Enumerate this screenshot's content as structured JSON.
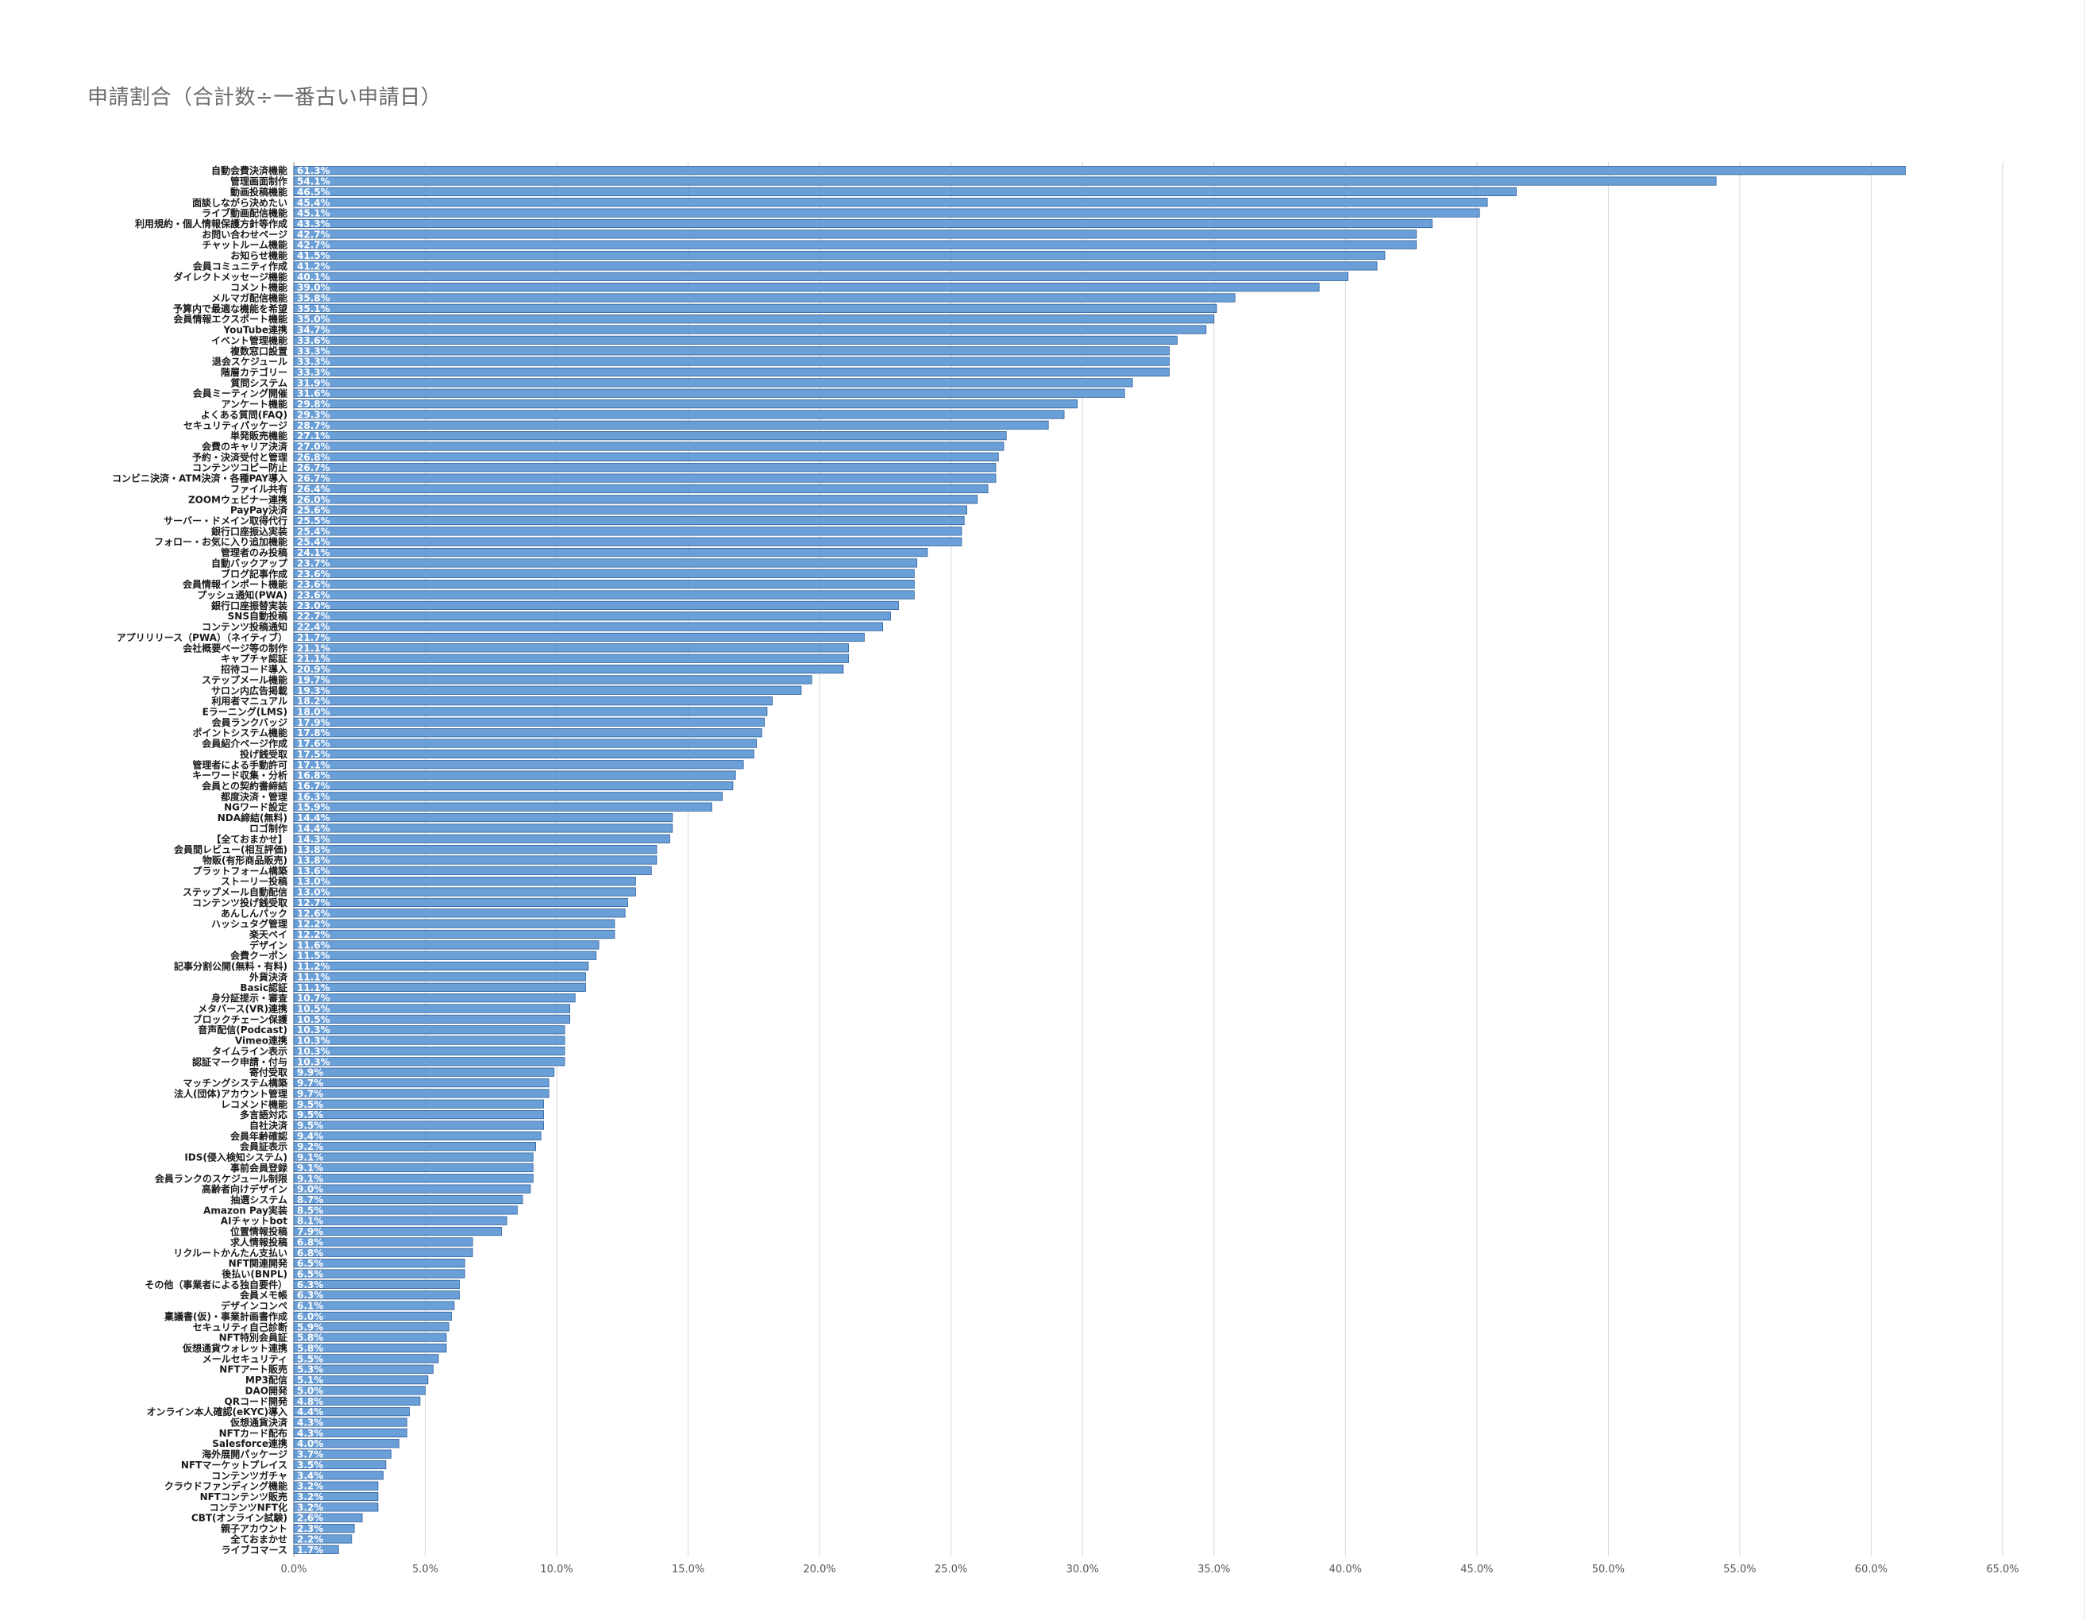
{
  "chart_data": {
    "type": "bar",
    "orientation": "horizontal",
    "title": "申請割合（合計数÷一番古い申請日）",
    "xlabel": "",
    "ylabel": "",
    "xlim": [
      0,
      65
    ],
    "x_ticks": [
      "0.0%",
      "5.0%",
      "10.0%",
      "15.0%",
      "20.0%",
      "25.0%",
      "30.0%",
      "35.0%",
      "40.0%",
      "45.0%",
      "50.0%",
      "55.0%",
      "60.0%",
      "65.0%"
    ],
    "grid": true,
    "legend": "none",
    "bar_color": "#6a9fd8",
    "bar_edge_color": "#2f5f9a",
    "categories": [
      "自動会費決済機能",
      "管理画面制作",
      "動画投稿機能",
      "面談しながら決めたい",
      "ライブ動画配信機能",
      "利用規約・個人情報保護方針等作成",
      "お問い合わせページ",
      "チャットルーム機能",
      "お知らせ機能",
      "会員コミュニティ作成",
      "ダイレクトメッセージ機能",
      "コメント機能",
      "メルマガ配信機能",
      "予算内で最適な機能を希望",
      "会員情報エクスポート機能",
      "YouTube連携",
      "イベント管理機能",
      "複数窓口設置",
      "退会スケジュール",
      "階層カテゴリー",
      "質問システム",
      "会員ミーティング開催",
      "アンケート機能",
      "よくある質問(FAQ)",
      "セキュリティパッケージ",
      "単発販売機能",
      "会費のキャリア決済",
      "予約・決済受付と管理",
      "コンテンツコピー防止",
      "コンビニ決済・ATM決済・各種PAY導入",
      "ファイル共有",
      "ZOOMウェビナー連携",
      "PayPay決済",
      "サーバー・ドメイン取得代行",
      "銀行口座振込実装",
      "フォロー・お気に入り追加機能",
      "管理者のみ投稿",
      "自動バックアップ",
      "ブログ記事作成",
      "会員情報インポート機能",
      "プッシュ通知(PWA)",
      "銀行口座振替実装",
      "SNS自動投稿",
      "コンテンツ投稿通知",
      "アプリリリース（PWA）（ネイティブ）",
      "会社概要ページ等の制作",
      "キャプチャ認証",
      "招待コード導入",
      "ステップメール機能",
      "サロン内広告掲載",
      "利用者マニュアル",
      "Eラーニング(LMS)",
      "会員ランクバッジ",
      "ポイントシステム機能",
      "会員紹介ページ作成",
      "投げ銭受取",
      "管理者による手動許可",
      "キーワード収集・分析",
      "会員との契約書締結",
      "都度決済・管理",
      "NGワード設定",
      "NDA締結(無料)",
      "ロゴ制作",
      "【全ておまかせ】",
      "会員間レビュー(相互評価)",
      "物販(有形商品販売)",
      "プラットフォーム構築",
      "ストーリー投稿",
      "ステップメール自動配信",
      "コンテンツ投げ銭受取",
      "あんしんパック",
      "ハッシュタグ管理",
      "楽天ペイ",
      "デザイン",
      "会費クーポン",
      "記事分割公開(無料・有料)",
      "外貨決済",
      "Basic認証",
      "身分証提示・審査",
      "メタバース(VR)連携",
      "ブロックチェーン保護",
      "音声配信(Podcast)",
      "Vimeo連携",
      "タイムライン表示",
      "認証マーク申請・付与",
      "寄付受取",
      "マッチングシステム構築",
      "法人(団体)アカウント管理",
      "レコメンド機能",
      "多言語対応",
      "自社決済",
      "会員年齢確認",
      "会員証表示",
      "IDS(侵入検知システム)",
      "事前会員登録",
      "会員ランクのスケジュール制限",
      "高齢者向けデザイン",
      "抽選システム",
      "Amazon Pay実装",
      "AIチャットbot",
      "位置情報投稿",
      "求人情報投稿",
      "リクルートかんたん支払い",
      "NFT関連開発",
      "後払い(BNPL)",
      "その他（事業者による独自要件）",
      "会員メモ帳",
      "デザインコンペ",
      "稟議書(仮)・事業計画書作成",
      "セキュリティ自己診断",
      "NFT特別会員証",
      "仮想通貨ウォレット連携",
      "メールセキュリティ",
      "NFTアート販売",
      "MP3配信",
      "DAO開発",
      "QRコード開発",
      "オンライン本人確認(eKYC)導入",
      "仮想通貨決済",
      "NFTカード配布",
      "Salesforce連携",
      "海外展開パッケージ",
      "NFTマーケットプレイス",
      "コンテンツガチャ",
      "クラウドファンディング機能",
      "NFTコンテンツ販売",
      "コンテンツNFT化",
      "CBT(オンライン試験)",
      "親子アカウント",
      "全ておまかせ",
      "ライブコマース"
    ],
    "values": [
      61.3,
      54.1,
      46.5,
      45.4,
      45.1,
      43.3,
      42.7,
      42.7,
      41.5,
      41.2,
      40.1,
      39.0,
      35.8,
      35.1,
      35.0,
      34.7,
      33.6,
      33.3,
      33.3,
      33.3,
      31.9,
      31.6,
      29.8,
      29.3,
      28.7,
      27.1,
      27.0,
      26.8,
      26.7,
      26.7,
      26.4,
      26.0,
      25.6,
      25.5,
      25.4,
      25.4,
      24.1,
      23.7,
      23.6,
      23.6,
      23.6,
      23.0,
      22.7,
      22.4,
      21.7,
      21.1,
      21.1,
      20.9,
      19.7,
      19.3,
      18.2,
      18.0,
      17.9,
      17.8,
      17.6,
      17.5,
      17.1,
      16.8,
      16.7,
      16.3,
      15.9,
      14.4,
      14.4,
      14.3,
      13.8,
      13.8,
      13.6,
      13.0,
      13.0,
      12.7,
      12.6,
      12.2,
      12.2,
      11.6,
      11.5,
      11.2,
      11.1,
      11.1,
      10.7,
      10.5,
      10.5,
      10.3,
      10.3,
      10.3,
      10.3,
      9.9,
      9.7,
      9.7,
      9.5,
      9.5,
      9.5,
      9.4,
      9.2,
      9.1,
      9.1,
      9.1,
      9.0,
      8.7,
      8.5,
      8.1,
      7.9,
      6.8,
      6.8,
      6.5,
      6.5,
      6.3,
      6.3,
      6.1,
      6.0,
      5.9,
      5.8,
      5.8,
      5.5,
      5.3,
      5.1,
      5.0,
      4.8,
      4.4,
      4.3,
      4.3,
      4.0,
      3.7,
      3.5,
      3.4,
      3.2,
      3.2,
      3.2,
      2.6,
      2.3,
      2.2,
      1.7
    ],
    "data_labels": [
      "61.3%",
      "54.1%",
      "46.5%",
      "45.4%",
      "45.1%",
      "43.3%",
      "42.7%",
      "42.7%",
      "41.5%",
      "41.2%",
      "40.1%",
      "39.0%",
      "35.8%",
      "35.1%",
      "35.0%",
      "34.7%",
      "33.6%",
      "33.3%",
      "33.3%",
      "33.3%",
      "31.9%",
      "31.6%",
      "29.8%",
      "29.3%",
      "28.7%",
      "27.1%",
      "27.0%",
      "26.8%",
      "26.7%",
      "26.7%",
      "26.4%",
      "26.0%",
      "25.6%",
      "25.5%",
      "25.4%",
      "25.4%",
      "24.1%",
      "23.7%",
      "23.6%",
      "23.6%",
      "23.6%",
      "23.0%",
      "22.7%",
      "22.4%",
      "21.7%",
      "21.1%",
      "21.1%",
      "20.9%",
      "19.7%",
      "19.3%",
      "18.2%",
      "18.0%",
      "17.9%",
      "17.8%",
      "17.6%",
      "17.5%",
      "17.1%",
      "16.8%",
      "16.7%",
      "16.3%",
      "15.9%",
      "14.4%",
      "14.4%",
      "14.3%",
      "13.8%",
      "13.8%",
      "13.6%",
      "13.0%",
      "13.0%",
      "12.7%",
      "12.6%",
      "12.2%",
      "12.2%",
      "11.6%",
      "11.5%",
      "11.2%",
      "11.1%",
      "11.1%",
      "10.7%",
      "10.5%",
      "10.5%",
      "10.3%",
      "10.3%",
      "10.3%",
      "10.3%",
      "9.9%",
      "9.7%",
      "9.7%",
      "9.5%",
      "9.5%",
      "9.5%",
      "9.4%",
      "9.2%",
      "9.1%",
      "9.1%",
      "9.1%",
      "9.0%",
      "8.7%",
      "8.5%",
      "8.1%",
      "7.9%",
      "6.8%",
      "6.8%",
      "6.5%",
      "6.5%",
      "6.3%",
      "6.3%",
      "6.1%",
      "6.0%",
      "5.9%",
      "5.8%",
      "5.8%",
      "5.5%",
      "5.3%",
      "5.1%",
      "5.0%",
      "4.8%",
      "4.4%",
      "4.3%",
      "4.3%",
      "4.0%",
      "3.7%",
      "3.5%",
      "3.4%",
      "3.2%",
      "3.2%",
      "3.2%",
      "2.6%",
      "2.3%",
      "2.2%",
      "1.7%"
    ]
  }
}
